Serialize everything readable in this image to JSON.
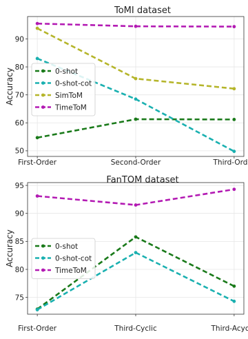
{
  "chart_data": [
    {
      "type": "line",
      "title": "ToMI dataset",
      "xlabel": "",
      "ylabel": "Accuracy",
      "categories": [
        "First-Order",
        "Second-Order",
        "Third-Order"
      ],
      "ylim": [
        48,
        98
      ],
      "yticks": [
        50,
        60,
        70,
        80,
        90
      ],
      "grid": true,
      "legend_position": "center-left",
      "series": [
        {
          "name": "0-shot",
          "color": "#1a7a1a",
          "values": [
            54.7,
            61.3,
            61.2
          ]
        },
        {
          "name": "0-shot-cot",
          "color": "#1ab0b0",
          "values": [
            83.0,
            68.5,
            49.8
          ]
        },
        {
          "name": "SimToM",
          "color": "#b5b52a",
          "values": [
            93.8,
            75.8,
            72.2
          ]
        },
        {
          "name": "TimeToM",
          "color": "#b31ab3",
          "values": [
            95.5,
            94.5,
            94.4
          ]
        }
      ]
    },
    {
      "type": "line",
      "title": "FanTOM dataset",
      "xlabel": "",
      "ylabel": "Accuracy",
      "categories": [
        "First-Order",
        "Third-Cyclic",
        "Third-Acyclic"
      ],
      "ylim": [
        72,
        95.5
      ],
      "yticks": [
        75,
        80,
        85,
        90,
        95
      ],
      "grid": true,
      "legend_position": "center-left",
      "series": [
        {
          "name": "0-shot",
          "color": "#1a7a1a",
          "values": [
            72.9,
            85.8,
            77.0
          ]
        },
        {
          "name": "0-shot-cot",
          "color": "#1ab0b0",
          "values": [
            72.8,
            83.0,
            74.3
          ]
        },
        {
          "name": "TimeToM",
          "color": "#b31ab3",
          "values": [
            93.1,
            91.5,
            94.3
          ]
        }
      ]
    }
  ]
}
